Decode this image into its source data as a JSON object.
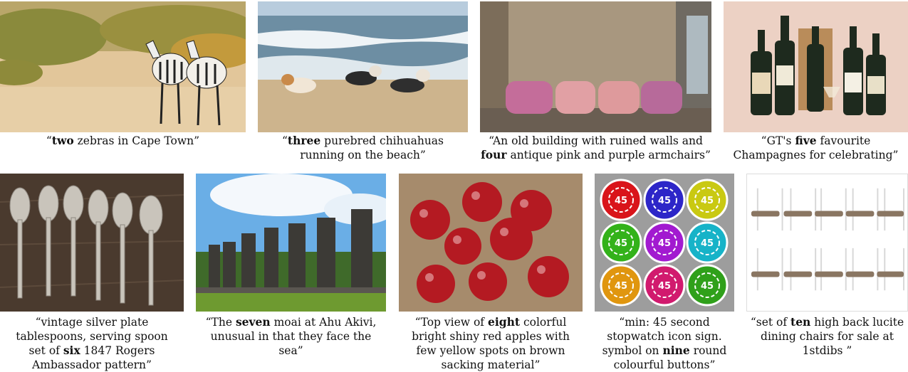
{
  "figures": [
    {
      "id": 1,
      "pre": "“",
      "count": "two",
      "post": " zebras in Cape Town”"
    },
    {
      "id": 2,
      "pre": "“",
      "count": "three",
      "post": " purebred chihuahuas",
      "line2": "running on the beach”"
    },
    {
      "id": 3,
      "pre": "“An old building with ruined walls and",
      "count": "four",
      "post": " antique pink and purple armchairs”"
    },
    {
      "id": 4,
      "pre": "“GT's ",
      "count": "five",
      "post": " favourite",
      "line2": "Champagnes for celebrating”"
    },
    {
      "id": 5,
      "line1": "“vintage silver plate",
      "line2": "tablespoons, serving spoon",
      "pre": "set of ",
      "count": "six",
      "post": " 1847 Rogers",
      "line4": "Ambassador pattern”"
    },
    {
      "id": 6,
      "pre": "“The ",
      "count": "seven",
      "post": " moai at Ahu Akivi,",
      "line2": "unusual in that they face the",
      "line3": "sea”"
    },
    {
      "id": 7,
      "pre": "“Top view of ",
      "count": "eight",
      "post": " colorful",
      "line2": "bright shiny red apples with",
      "line3": "few yellow spots on brown",
      "line4": "sacking material”"
    },
    {
      "id": 8,
      "line1": "“min: 45 second",
      "line2": "stopwatch icon sign.",
      "pre": "symbol on ",
      "count": "nine",
      "post": " round",
      "line4": "colourful buttons”"
    },
    {
      "id": 9,
      "pre": "“set of ",
      "count": "ten",
      "post": " high back lucite",
      "line2": "dining chairs for sale at",
      "line3": "1stdibs ”"
    }
  ],
  "button_label": "45",
  "button_colors": [
    "#d9141a",
    "#2d26c8",
    "#c9c912",
    "#33b21a",
    "#a21ad0",
    "#17b3c8",
    "#e0960f",
    "#d11a6e",
    "#2fa01a"
  ]
}
